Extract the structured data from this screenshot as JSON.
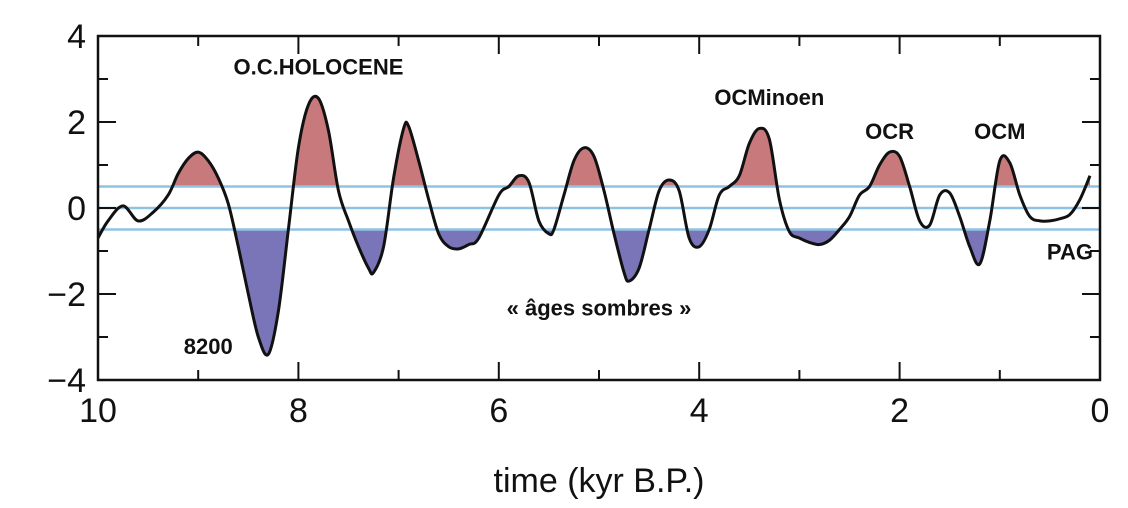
{
  "chart_data": {
    "type": "line",
    "title": "",
    "xlabel": "time (kyr B.P.)",
    "ylabel": "",
    "xlim": [
      10,
      0
    ],
    "ylim": [
      -4,
      4
    ],
    "x_reversed": true,
    "xticks": [
      10,
      8,
      6,
      4,
      2,
      0
    ],
    "yticks": [
      4,
      2,
      0,
      -2,
      -4
    ],
    "ytick_labels": [
      "4",
      "2",
      "0",
      "−2",
      "−4"
    ],
    "thresholds": [
      0.5,
      0,
      -0.5
    ],
    "threshold_color": "#8fc3e3",
    "fill_above_color": "#c8797c",
    "fill_below_color": "#7a74b8",
    "line_color": "#111111",
    "series": [
      {
        "x": [
          10.0,
          9.9,
          9.75,
          9.6,
          9.45,
          9.3,
          9.2,
          9.1,
          9.0,
          8.9,
          8.8,
          8.7,
          8.6,
          8.5,
          8.4,
          8.3,
          8.2,
          8.1,
          8.0,
          7.9,
          7.8,
          7.7,
          7.6,
          7.5,
          7.4,
          7.3,
          7.25,
          7.15,
          7.05,
          6.95,
          6.9,
          6.8,
          6.7,
          6.6,
          6.5,
          6.4,
          6.3,
          6.2,
          6.0,
          5.9,
          5.8,
          5.7,
          5.6,
          5.5,
          5.45,
          5.35,
          5.25,
          5.15,
          5.05,
          4.95,
          4.85,
          4.75,
          4.7,
          4.6,
          4.5,
          4.4,
          4.3,
          4.2,
          4.1,
          4.0,
          3.9,
          3.8,
          3.7,
          3.6,
          3.5,
          3.4,
          3.3,
          3.2,
          3.1,
          3.0,
          2.9,
          2.8,
          2.7,
          2.6,
          2.5,
          2.4,
          2.3,
          2.2,
          2.1,
          2.0,
          1.9,
          1.8,
          1.7,
          1.6,
          1.5,
          1.4,
          1.3,
          1.2,
          1.1,
          1.0,
          0.9,
          0.8,
          0.7,
          0.6,
          0.5,
          0.4,
          0.3,
          0.2,
          0.1
        ],
        "y": [
          -0.7,
          -0.3,
          0.05,
          -0.3,
          -0.1,
          0.3,
          0.8,
          1.15,
          1.3,
          1.1,
          0.7,
          0.1,
          -0.9,
          -2.0,
          -3.0,
          -3.4,
          -2.4,
          -0.5,
          1.4,
          2.4,
          2.55,
          1.8,
          0.4,
          -0.3,
          -0.9,
          -1.4,
          -1.5,
          -0.9,
          0.7,
          1.85,
          1.9,
          1.1,
          0.2,
          -0.6,
          -0.9,
          -0.95,
          -0.85,
          -0.7,
          0.3,
          0.5,
          0.75,
          0.6,
          -0.3,
          -0.6,
          -0.5,
          0.3,
          1.1,
          1.4,
          1.2,
          0.4,
          -0.6,
          -1.5,
          -1.7,
          -1.4,
          -0.5,
          0.4,
          0.65,
          0.4,
          -0.7,
          -0.9,
          -0.5,
          0.3,
          0.5,
          0.75,
          1.5,
          1.85,
          1.6,
          0.2,
          -0.55,
          -0.7,
          -0.8,
          -0.85,
          -0.75,
          -0.5,
          -0.2,
          0.3,
          0.5,
          1.0,
          1.3,
          1.2,
          0.5,
          -0.3,
          -0.4,
          0.3,
          0.35,
          -0.2,
          -0.9,
          -1.3,
          -0.3,
          1.1,
          1.05,
          0.3,
          -0.2,
          -0.3,
          -0.3,
          -0.25,
          -0.15,
          0.2,
          0.75
        ]
      }
    ],
    "annotations": [
      {
        "text": "O.C.HOLOCENE",
        "x": 7.8,
        "y": 3.1
      },
      {
        "text": "OCMinoen",
        "x": 3.3,
        "y": 2.4
      },
      {
        "text": "OCR",
        "x": 2.1,
        "y": 1.6
      },
      {
        "text": "OCM",
        "x": 1.0,
        "y": 1.6
      },
      {
        "text": "PAG",
        "x": 0.3,
        "y": -1.2
      },
      {
        "text": "« âges sombres »",
        "x": 5.0,
        "y": -2.5
      },
      {
        "text": "8200",
        "x": 8.9,
        "y": -3.4
      }
    ]
  }
}
